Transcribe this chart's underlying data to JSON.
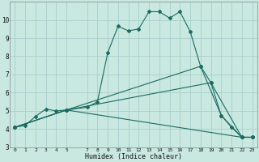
{
  "xlabel": "Humidex (Indice chaleur)",
  "background_color": "#c8e8e0",
  "grid_color": "#aacece",
  "line_color": "#1a6b60",
  "xlim": [
    -0.5,
    23.5
  ],
  "ylim": [
    3,
    11
  ],
  "yticks": [
    3,
    4,
    5,
    6,
    7,
    8,
    9,
    10
  ],
  "xticks": [
    0,
    1,
    2,
    3,
    4,
    5,
    7,
    8,
    9,
    10,
    11,
    12,
    13,
    14,
    15,
    16,
    17,
    18,
    19,
    20,
    21,
    22,
    23
  ],
  "series": [
    {
      "x": [
        0,
        1,
        2,
        3,
        4,
        5,
        7,
        8,
        9,
        10,
        11,
        12,
        13,
        14,
        15,
        16,
        17,
        18,
        19,
        20,
        21,
        22,
        23
      ],
      "y": [
        4.1,
        4.2,
        4.7,
        5.1,
        5.0,
        5.05,
        5.2,
        5.5,
        8.2,
        9.65,
        9.4,
        9.5,
        10.45,
        10.45,
        10.1,
        10.45,
        9.35,
        7.45,
        6.55,
        4.75,
        4.1,
        3.55,
        3.55
      ]
    },
    {
      "x": [
        0,
        5,
        22,
        23
      ],
      "y": [
        4.1,
        5.05,
        3.55,
        3.55
      ]
    },
    {
      "x": [
        0,
        5,
        19,
        22,
        23
      ],
      "y": [
        4.1,
        5.05,
        6.55,
        3.55,
        3.55
      ]
    },
    {
      "x": [
        0,
        5,
        18,
        20,
        22,
        23
      ],
      "y": [
        4.1,
        5.05,
        7.45,
        4.75,
        3.55,
        3.55
      ]
    }
  ]
}
